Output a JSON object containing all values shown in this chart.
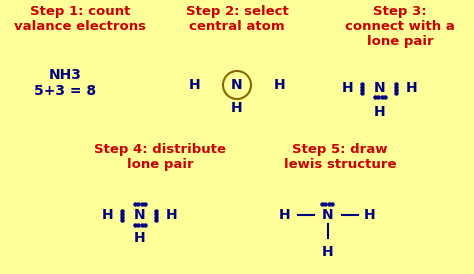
{
  "bg_color": "#FFFF99",
  "step_color": "#CC0000",
  "content_color": "#000080",
  "step1_title": "Step 1: count\nvalance electrons",
  "step2_title": "Step 2: select\ncentral atom",
  "step3_title": "Step 3:\nconnect with a\nlone pair",
  "step4_title": "Step 4: distribute\nlone pair",
  "step5_title": "Step 5: draw\nlewis structure",
  "step1_content": "NH3\n5+3 = 8",
  "title_fontsize": 9.5,
  "content_fontsize": 10
}
